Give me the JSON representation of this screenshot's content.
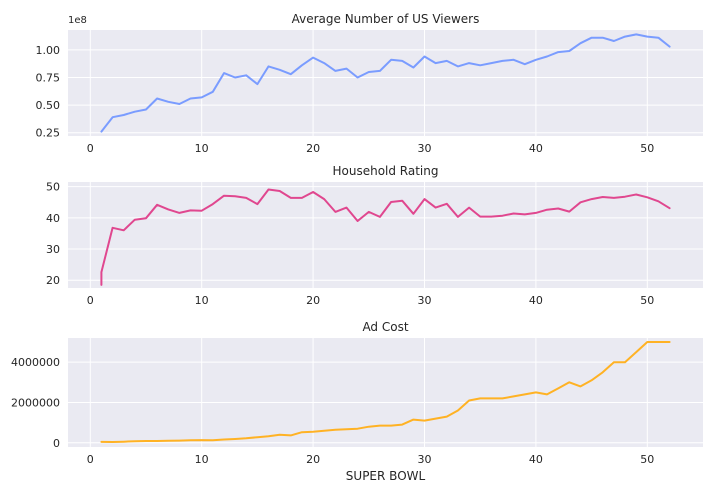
{
  "chart_data": [
    {
      "type": "line",
      "title": "Average Number of US Viewers",
      "xlabel": "",
      "ylabel": "",
      "y_offset_label": "1e8",
      "color": "#7a9cff",
      "xlim": [
        -2,
        55
      ],
      "ylim": [
        0.22,
        1.18
      ],
      "xticks": [
        0,
        10,
        20,
        30,
        40,
        50
      ],
      "yticks": [
        0.25,
        0.5,
        0.75,
        1.0
      ],
      "ytick_labels": [
        "0.25",
        "0.50",
        "0.75",
        "1.00"
      ],
      "grid": true,
      "x": [
        1,
        2,
        3,
        4,
        5,
        6,
        7,
        8,
        9,
        10,
        11,
        12,
        13,
        14,
        15,
        16,
        17,
        18,
        19,
        20,
        21,
        22,
        23,
        24,
        25,
        26,
        27,
        28,
        29,
        30,
        31,
        32,
        33,
        34,
        35,
        36,
        37,
        38,
        39,
        40,
        41,
        42,
        43,
        44,
        45,
        46,
        47,
        48,
        49,
        50,
        51,
        52
      ],
      "values": [
        0.26,
        0.39,
        0.41,
        0.44,
        0.46,
        0.56,
        0.53,
        0.51,
        0.56,
        0.57,
        0.62,
        0.79,
        0.75,
        0.77,
        0.69,
        0.85,
        0.82,
        0.78,
        0.86,
        0.93,
        0.88,
        0.81,
        0.83,
        0.75,
        0.8,
        0.81,
        0.91,
        0.9,
        0.84,
        0.94,
        0.88,
        0.9,
        0.85,
        0.88,
        0.86,
        0.88,
        0.9,
        0.91,
        0.87,
        0.91,
        0.94,
        0.98,
        0.99,
        1.06,
        1.11,
        1.11,
        1.08,
        1.12,
        1.14,
        1.12,
        1.11,
        1.03
      ]
    },
    {
      "type": "line",
      "title": "Household Rating",
      "xlabel": "",
      "ylabel": "",
      "color": "#e0478f",
      "xlim": [
        -2,
        55
      ],
      "ylim": [
        17.5,
        51.5
      ],
      "xticks": [
        0,
        10,
        20,
        30,
        40,
        50
      ],
      "yticks": [
        20,
        30,
        40,
        50
      ],
      "ytick_labels": [
        "20",
        "30",
        "40",
        "50"
      ],
      "grid": true,
      "x": [
        1,
        1,
        2,
        3,
        4,
        5,
        6,
        7,
        8,
        9,
        10,
        11,
        12,
        13,
        14,
        15,
        16,
        17,
        18,
        19,
        20,
        21,
        22,
        23,
        24,
        25,
        26,
        27,
        28,
        29,
        30,
        31,
        32,
        33,
        34,
        35,
        36,
        37,
        38,
        39,
        40,
        41,
        42,
        43,
        44,
        45,
        46,
        47,
        48,
        49,
        50,
        51,
        52
      ],
      "values": [
        18.5,
        22.6,
        36.8,
        36.0,
        39.4,
        39.9,
        44.2,
        42.7,
        41.6,
        42.4,
        42.3,
        44.4,
        47.1,
        46.9,
        46.4,
        44.4,
        49.1,
        48.6,
        46.4,
        46.4,
        48.3,
        46.0,
        41.9,
        43.3,
        39.0,
        41.9,
        40.3,
        45.1,
        45.5,
        41.3,
        46.0,
        43.3,
        44.5,
        40.3,
        43.3,
        40.4,
        40.4,
        40.7,
        41.4,
        41.1,
        41.6,
        42.6,
        43.0,
        42.0,
        45.0,
        46.0,
        46.7,
        46.4,
        46.8,
        47.5,
        46.6,
        45.3,
        43.1
      ]
    },
    {
      "type": "line",
      "title": "Ad Cost",
      "xlabel": "SUPER BOWL",
      "ylabel": "",
      "color": "#ffb224",
      "xlim": [
        -2,
        55
      ],
      "ylim": [
        -210000,
        5200000
      ],
      "xticks": [
        0,
        10,
        20,
        30,
        40,
        50
      ],
      "yticks": [
        0,
        2000000,
        4000000
      ],
      "ytick_labels": [
        "0",
        "2000000",
        "4000000"
      ],
      "grid": true,
      "x": [
        1,
        2,
        3,
        4,
        5,
        6,
        7,
        8,
        9,
        10,
        11,
        12,
        13,
        14,
        15,
        16,
        17,
        18,
        19,
        20,
        21,
        22,
        23,
        24,
        25,
        26,
        27,
        28,
        29,
        30,
        31,
        32,
        33,
        34,
        35,
        36,
        37,
        38,
        39,
        40,
        41,
        42,
        43,
        44,
        45,
        46,
        47,
        48,
        49,
        50,
        51,
        52
      ],
      "values": [
        42000,
        40000,
        54000,
        78000,
        88000,
        86000,
        103000,
        107000,
        125000,
        130000,
        125000,
        162000,
        185000,
        222000,
        275000,
        324000,
        400000,
        368000,
        525000,
        550000,
        600000,
        645000,
        675000,
        700000,
        800000,
        850000,
        850000,
        900000,
        1150000,
        1100000,
        1200000,
        1300000,
        1600000,
        2100000,
        2200000,
        2200000,
        2200000,
        2300000,
        2400000,
        2500000,
        2400000,
        2700000,
        3000000,
        2800000,
        3100000,
        3500000,
        4000000,
        4000000,
        4500000,
        5000000,
        5000000,
        5000000
      ]
    }
  ]
}
